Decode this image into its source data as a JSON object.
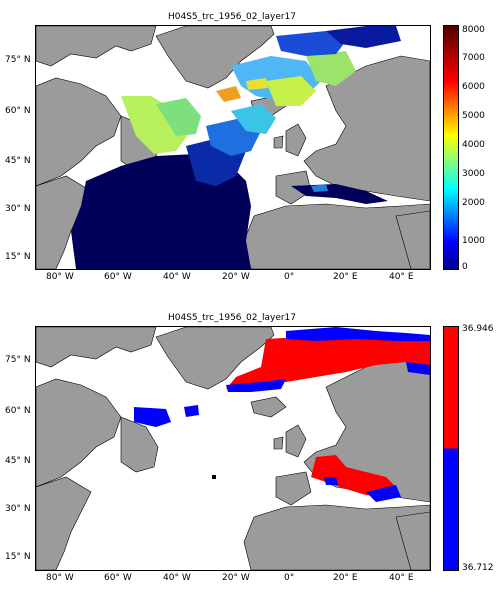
{
  "panels": [
    {
      "title": "H04S5_trc_1956_02_layer17",
      "y_ticks": [
        "75° N",
        "60° N",
        "45° N",
        "30° N",
        "15° N"
      ],
      "x_ticks": [
        "80° W",
        "60° W",
        "40° W",
        "20° W",
        "0°",
        "20° E",
        "40° E"
      ],
      "colorbar_ticks": [
        "8000",
        "7000",
        "6000",
        "5000",
        "4000",
        "3000",
        "2000",
        "1000",
        "0"
      ],
      "colormap": "jet"
    },
    {
      "title": "H04S5_trc_1956_02_layer17",
      "y_ticks": [
        "75° N",
        "60° N",
        "45° N",
        "30° N",
        "15° N"
      ],
      "x_ticks": [
        "80° W",
        "60° W",
        "40° W",
        "20° W",
        "0°",
        "20° E",
        "40° E"
      ],
      "colorbar_ticks": [
        "36.946",
        "36.712"
      ],
      "colormap": "red-blue"
    }
  ],
  "colors": {
    "land": "#9b9b9b",
    "dark_blue": "#00005a",
    "red": "#ff0000",
    "blue": "#0000ff"
  }
}
